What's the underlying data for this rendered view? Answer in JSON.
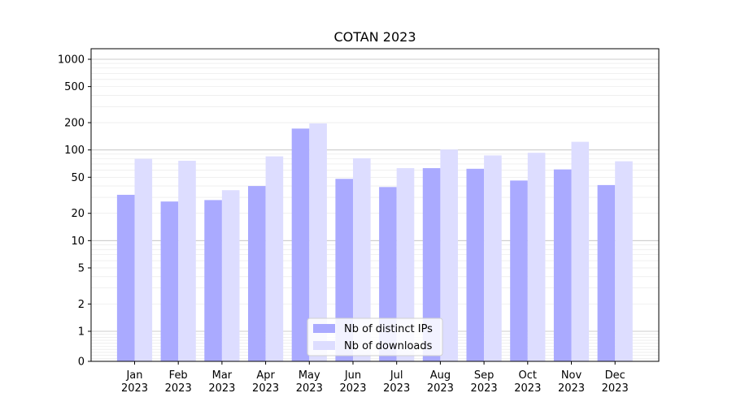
{
  "chart_data": {
    "type": "bar",
    "title": "COTAN 2023",
    "xlabel": "",
    "ylabel": "",
    "yscale": "symlog",
    "ylim": [
      0,
      1200
    ],
    "yticks": [
      0,
      1,
      2,
      5,
      10,
      20,
      50,
      100,
      200,
      500,
      1000
    ],
    "ytick_labels": [
      "0",
      "1",
      "2",
      "5",
      "10",
      "20",
      "50",
      "100",
      "200",
      "500",
      "1000"
    ],
    "categories": [
      "Jan\n2023",
      "Feb\n2023",
      "Mar\n2023",
      "Apr\n2023",
      "May\n2023",
      "Jun\n2023",
      "Jul\n2023",
      "Aug\n2023",
      "Sep\n2023",
      "Oct\n2023",
      "Nov\n2023",
      "Dec\n2023"
    ],
    "series": [
      {
        "name": "Nb of distinct IPs",
        "color": "#aaaaff",
        "values": [
          32,
          27,
          28,
          40,
          172,
          48,
          39,
          63,
          62,
          46,
          61,
          41
        ]
      },
      {
        "name": "Nb of downloads",
        "color": "#ddddff",
        "values": [
          80,
          76,
          36,
          85,
          196,
          81,
          63,
          101,
          87,
          93,
          123,
          75
        ]
      }
    ],
    "grid": true,
    "legend_position": "bottom-center"
  }
}
